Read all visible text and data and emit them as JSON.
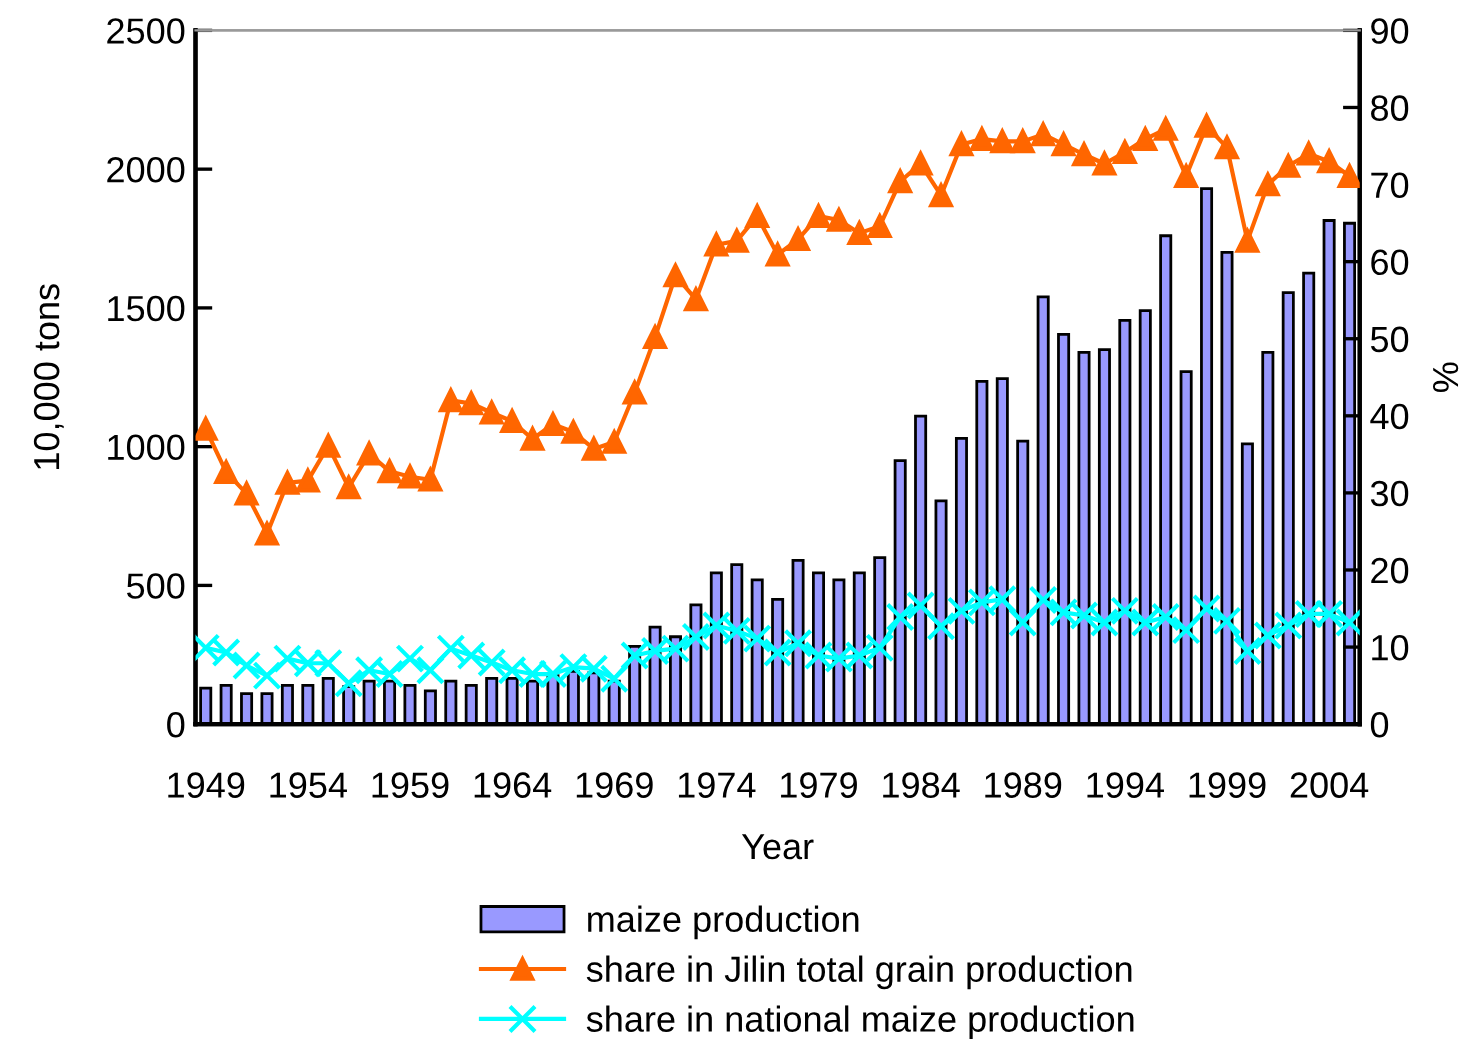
{
  "chart_data": {
    "type": "bar",
    "xlabel": "Year",
    "ylabel": "10,000 tons",
    "y2label": "%",
    "categories": [
      "1949",
      null,
      null,
      null,
      null,
      "1954",
      null,
      null,
      null,
      null,
      "1959",
      null,
      null,
      null,
      null,
      "1964",
      null,
      null,
      null,
      null,
      "1969",
      null,
      null,
      null,
      null,
      "1974",
      null,
      null,
      null,
      null,
      "1979",
      null,
      null,
      null,
      null,
      "1984",
      null,
      null,
      null,
      null,
      "1989",
      null,
      null,
      null,
      null,
      "1994",
      null,
      null,
      null,
      null,
      "1999",
      null,
      null,
      null,
      null,
      "2004",
      null
    ],
    "series": [
      {
        "name": "maize production",
        "color": "#9999ff",
        "values": [
          130,
          140,
          110,
          110,
          140,
          140,
          165,
          135,
          155,
          155,
          140,
          120,
          155,
          140,
          165,
          165,
          155,
          175,
          190,
          185,
          155,
          280,
          350,
          315,
          430,
          545,
          575,
          520,
          450,
          590,
          545,
          520,
          545,
          600,
          950,
          1110,
          805,
          1030,
          1235,
          1245,
          1020,
          1540,
          1405,
          1340,
          1350,
          1455,
          1490,
          1760,
          1270,
          1930,
          1700,
          1010,
          1340,
          1555,
          1625,
          1815,
          1805
        ]
      },
      {
        "name": "share in Jilin total grain production",
        "type": "line",
        "axis": "y2",
        "color": "#ff6600",
        "marker": "triangle",
        "line_style": "solid",
        "values": [
          38.3,
          32.7,
          29.9,
          24.7,
          31.3,
          31.6,
          36.1,
          30.7,
          35.1,
          32.8,
          32.1,
          31.7,
          42.0,
          41.6,
          40.4,
          39.3,
          37.0,
          38.9,
          37.9,
          35.7,
          36.6,
          43.0,
          50.2,
          58.2,
          55.1,
          62.2,
          62.7,
          65.9,
          60.9,
          62.9,
          65.9,
          65.4,
          63.7,
          64.6,
          70.4,
          72.7,
          68.6,
          75.2,
          75.9,
          75.6,
          75.6,
          76.5,
          75.2,
          73.9,
          72.7,
          74.2,
          75.9,
          77.2,
          71.1,
          77.6,
          74.8,
          62.7,
          70.0,
          72.4,
          74.0,
          73.0,
          71.1
        ]
      },
      {
        "name": "share in national maize production",
        "type": "line",
        "axis": "y2",
        "color": "#00ffff",
        "marker": "cross",
        "line_style": "solid",
        "values": [
          9.9,
          9.3,
          7.6,
          6.3,
          8.5,
          7.9,
          7.9,
          5.3,
          7.0,
          6.5,
          8.5,
          7.0,
          9.8,
          8.9,
          8.0,
          7.0,
          6.5,
          6.5,
          7.4,
          7.2,
          5.9,
          8.9,
          9.5,
          9.8,
          11.3,
          12.8,
          12.1,
          11.1,
          9.3,
          10.5,
          8.9,
          8.5,
          8.9,
          9.9,
          13.9,
          15.4,
          12.7,
          14.7,
          15.8,
          16.2,
          13.2,
          16.1,
          14.5,
          14.1,
          13.2,
          14.7,
          13.2,
          13.9,
          12.2,
          15.0,
          13.4,
          9.5,
          11.5,
          12.8,
          14.3,
          14.3,
          13.2
        ]
      }
    ],
    "ylim": [
      0,
      2500
    ],
    "yticks": [
      0,
      500,
      1000,
      1500,
      2000,
      2500
    ],
    "y2lim": [
      0,
      90
    ],
    "y2ticks": [
      0,
      10,
      20,
      30,
      40,
      50,
      60,
      70,
      80,
      90
    ],
    "legend": "bottom"
  }
}
